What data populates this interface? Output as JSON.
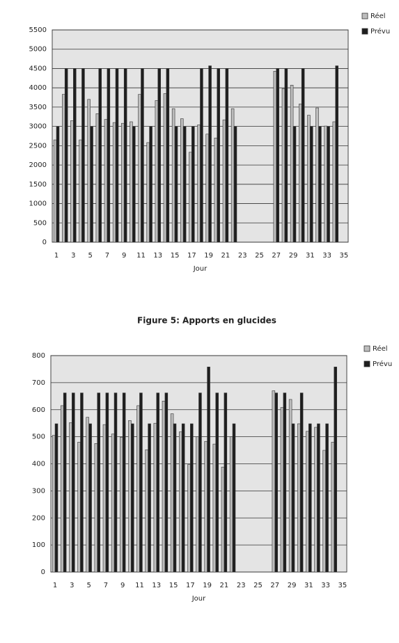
{
  "chart_data": [
    {
      "type": "bar",
      "xlabel": "Jour",
      "categories": [
        1,
        null,
        3,
        null,
        5,
        null,
        7,
        null,
        9,
        null,
        11,
        null,
        13,
        null,
        15,
        null,
        17,
        null,
        19,
        null,
        21,
        null,
        23,
        null,
        25,
        null,
        27,
        null,
        29,
        null,
        31,
        null,
        33,
        null,
        35
      ],
      "series": [
        {
          "name": "Réel",
          "color": "#bdbdbd",
          "values": [
            2650,
            3830,
            3150,
            2650,
            3700,
            3330,
            3180,
            3100,
            3080,
            3120,
            3830,
            2580,
            3670,
            3850,
            3460,
            3200,
            2330,
            3040,
            2800,
            2700,
            3170,
            3460,
            null,
            null,
            null,
            null,
            4430,
            3980,
            4070,
            3580,
            3290,
            3480,
            3010,
            3120,
            null
          ]
        },
        {
          "name": "Prévu",
          "color": "#1e1e1e",
          "values": [
            3000,
            4500,
            4500,
            4500,
            3000,
            4500,
            4500,
            4500,
            4500,
            3000,
            4500,
            3000,
            4500,
            4500,
            3000,
            3000,
            3000,
            4500,
            4570,
            4500,
            4500,
            3000,
            null,
            null,
            null,
            null,
            4500,
            4500,
            3000,
            4500,
            3000,
            3000,
            3000,
            4570,
            null
          ]
        }
      ],
      "ylim": [
        0,
        5500
      ],
      "yticks": [
        0,
        500,
        1000,
        1500,
        2000,
        2500,
        3000,
        3500,
        4000,
        4500,
        5000,
        5500
      ],
      "grid": true
    },
    {
      "type": "bar",
      "title": "Figure 5: Apports en glucides",
      "xlabel": "Jour",
      "categories": [
        1,
        null,
        3,
        null,
        5,
        null,
        7,
        null,
        9,
        null,
        11,
        null,
        13,
        null,
        15,
        null,
        17,
        null,
        19,
        null,
        21,
        null,
        23,
        null,
        25,
        null,
        27,
        null,
        29,
        null,
        31,
        null,
        33,
        null,
        35
      ],
      "series": [
        {
          "name": "Réel",
          "color": "#bdbdbd",
          "values": [
            505,
            615,
            552,
            480,
            572,
            475,
            545,
            510,
            498,
            560,
            615,
            452,
            550,
            632,
            585,
            518,
            397,
            500,
            483,
            473,
            388,
            500,
            null,
            null,
            null,
            null,
            670,
            608,
            638,
            548,
            520,
            535,
            450,
            480,
            null
          ]
        },
        {
          "name": "Prévu",
          "color": "#1e1e1e",
          "values": [
            548,
            662,
            662,
            662,
            548,
            662,
            662,
            662,
            662,
            548,
            662,
            548,
            662,
            662,
            548,
            548,
            548,
            662,
            758,
            662,
            662,
            548,
            null,
            null,
            null,
            null,
            662,
            662,
            548,
            662,
            548,
            548,
            548,
            758,
            null
          ]
        }
      ],
      "ylim": [
        0,
        800
      ],
      "yticks": [
        0,
        100,
        200,
        300,
        400,
        500,
        600,
        700,
        800
      ],
      "grid": true
    }
  ]
}
